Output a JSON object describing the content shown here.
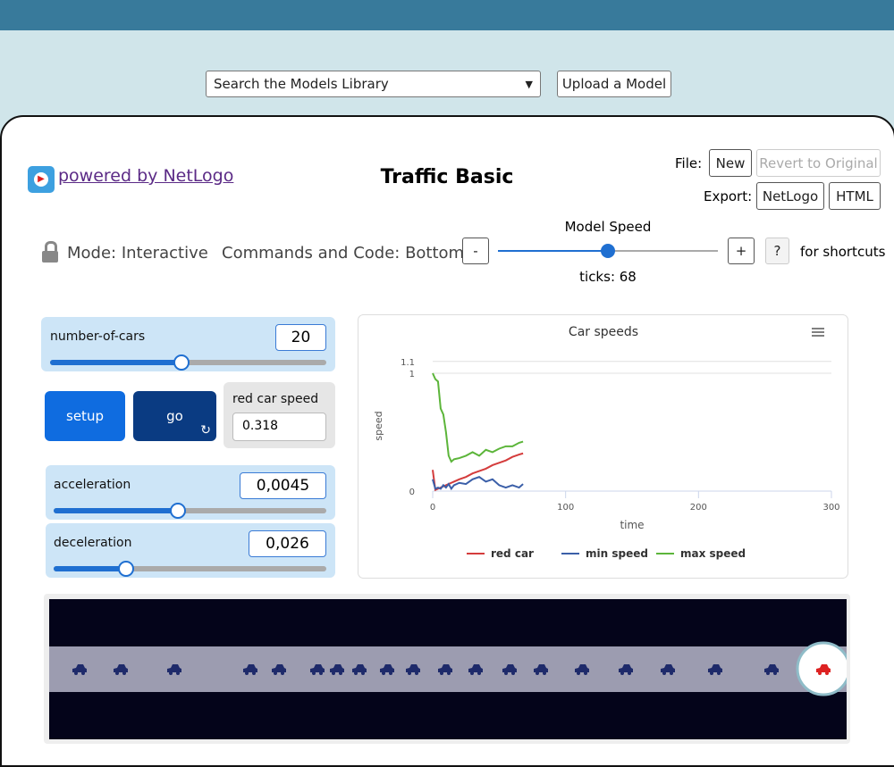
{
  "header": {
    "search_placeholder": "Search the Models Library",
    "upload_button": "Upload a Model"
  },
  "model": {
    "powered_by": "powered by NetLogo",
    "title": "Traffic Basic",
    "file_label": "File:",
    "file_buttons": [
      "New",
      "Revert to Original"
    ],
    "export_label": "Export:",
    "export_buttons": [
      "NetLogo",
      "HTML"
    ]
  },
  "toolbar": {
    "mode": "Mode: Interactive",
    "commands": "Commands and Code: Bottom",
    "speed_label": "Model Speed",
    "minus": "-",
    "plus": "+",
    "help": "?",
    "shortcuts": "for shortcuts",
    "ticks": "ticks: 68"
  },
  "widgets": {
    "number_of_cars": {
      "label": "number-of-cars",
      "value": "20"
    },
    "setup": "setup",
    "go": "go",
    "red_car_speed": {
      "label": "red car speed",
      "value": "0.318"
    },
    "acceleration": {
      "label": "acceleration",
      "value": "0,0045"
    },
    "deceleration": {
      "label": "deceleration",
      "value": "0,026"
    }
  },
  "chart_data": {
    "type": "line",
    "title": "Car speeds",
    "x_label": "time",
    "y_label": "speed",
    "xlim": [
      0,
      300
    ],
    "xticks": [
      0,
      100,
      200,
      300
    ],
    "ylim": [
      0,
      1.1
    ],
    "yticks": [
      0,
      1,
      1.1
    ],
    "grid": true,
    "x": [
      0,
      2,
      4,
      6,
      8,
      10,
      12,
      14,
      16,
      20,
      25,
      30,
      35,
      40,
      45,
      50,
      55,
      60,
      65,
      68
    ],
    "series": [
      {
        "name": "red car",
        "color": "#d43c3c",
        "values": [
          0.18,
          0.01,
          0.02,
          0.03,
          0.04,
          0.05,
          0.06,
          0.07,
          0.08,
          0.1,
          0.12,
          0.15,
          0.17,
          0.19,
          0.22,
          0.24,
          0.26,
          0.29,
          0.31,
          0.32
        ]
      },
      {
        "name": "min speed",
        "color": "#3b5fa8",
        "values": [
          0.1,
          0.02,
          0.03,
          0.02,
          0.05,
          0.03,
          0.06,
          0.02,
          0.05,
          0.07,
          0.06,
          0.1,
          0.12,
          0.08,
          0.1,
          0.05,
          0.03,
          0.05,
          0.03,
          0.06
        ]
      },
      {
        "name": "max speed",
        "color": "#5cb53a",
        "values": [
          1.0,
          0.95,
          0.93,
          0.7,
          0.65,
          0.5,
          0.3,
          0.25,
          0.27,
          0.28,
          0.3,
          0.33,
          0.3,
          0.35,
          0.33,
          0.36,
          0.38,
          0.38,
          0.41,
          0.42
        ]
      }
    ]
  }
}
